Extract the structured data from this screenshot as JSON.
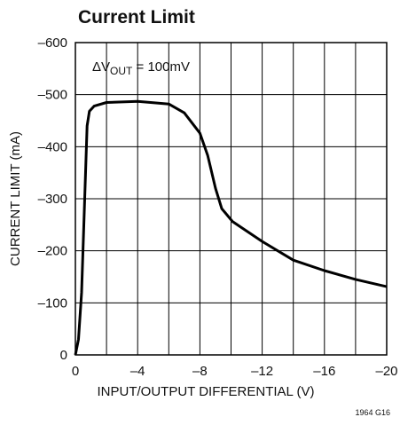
{
  "chart_data": {
    "type": "line",
    "title": "Current Limit",
    "xlabel": "INPUT/OUTPUT DIFFERENTIAL (V)",
    "ylabel": "CURRENT LIMIT (mA)",
    "annotation": {
      "text": "ΔV",
      "sub": "OUT",
      "after": " = 100mV"
    },
    "footnote": "1964 G16",
    "xlim": [
      0,
      -20
    ],
    "ylim": [
      0,
      -600
    ],
    "xticks": [
      0,
      {
        "value": -4,
        "label": "–4"
      },
      {
        "value": -8,
        "label": "–8"
      },
      {
        "value": -12,
        "label": "–12"
      },
      {
        "value": -16,
        "label": "–16"
      },
      {
        "value": -20,
        "label": "–20"
      }
    ],
    "xminor_ticks": [
      -2,
      -6,
      -10,
      -14,
      -18
    ],
    "yticks": [
      0,
      {
        "value": -100,
        "label": "–100"
      },
      {
        "value": -200,
        "label": "–200"
      },
      {
        "value": -300,
        "label": "–300"
      },
      {
        "value": -400,
        "label": "–400"
      },
      {
        "value": -500,
        "label": "–500"
      },
      {
        "value": -600,
        "label": "–600"
      }
    ],
    "grid": true,
    "series": [
      {
        "color": "#000000",
        "x": [
          0,
          -0.2,
          -0.4,
          -0.6,
          -0.75,
          -0.9,
          -1.2,
          -2,
          -4,
          -6,
          -7,
          -8,
          -8.5,
          -9,
          -9.4,
          -10.1,
          -12,
          -14,
          -16,
          -18,
          -20
        ],
        "values": [
          0,
          -30,
          -120,
          -300,
          -440,
          -468,
          -478,
          -485,
          -487,
          -482,
          -465,
          -426,
          -383,
          -320,
          -281,
          -256,
          -218,
          -182,
          -162,
          -145,
          -131
        ]
      }
    ]
  }
}
